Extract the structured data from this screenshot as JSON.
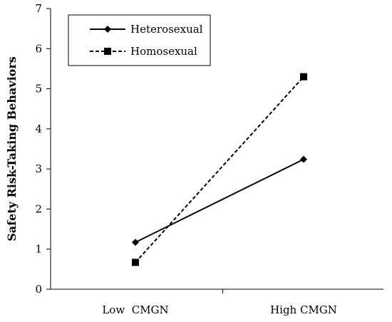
{
  "chart_data": {
    "type": "line",
    "categories": [
      "Low  CMGN",
      "High CMGN"
    ],
    "series": [
      {
        "name": "Heterosexual",
        "values": [
          1.17,
          3.24
        ],
        "line_style": "solid",
        "marker": "diamond",
        "color": "#000000"
      },
      {
        "name": "Homosexual",
        "values": [
          0.67,
          5.3
        ],
        "line_style": "dashed",
        "marker": "square",
        "color": "#000000"
      }
    ],
    "xlabel": "",
    "ylabel": "Safety Risk-Taking Behaviors",
    "ylim": [
      0,
      7
    ],
    "yticks": [
      0,
      1,
      2,
      3,
      4,
      5,
      6,
      7
    ],
    "grid": false,
    "legend_position": "top-left"
  }
}
